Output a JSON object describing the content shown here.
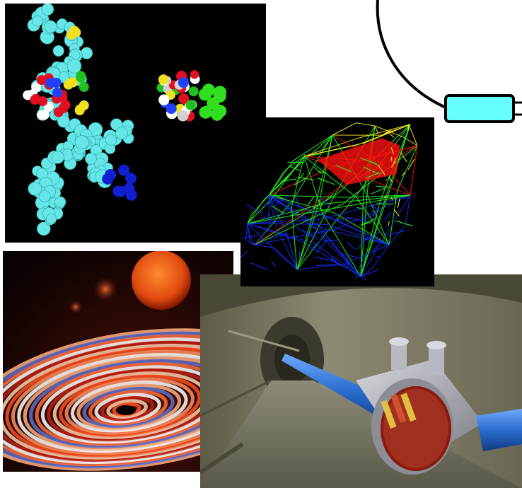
{
  "images": [
    {
      "name": "molecular-model",
      "icon": "molecule-illustration"
    },
    {
      "name": "car-wireframe",
      "icon": "car-wireframe-illustration"
    },
    {
      "name": "black-hole-accretion-disk",
      "icon": "galaxy-illustration"
    },
    {
      "name": "accelerator-tunnel",
      "icon": "tunnel-illustration"
    },
    {
      "name": "cable-connector",
      "icon": "cable-plug-illustration"
    }
  ],
  "colors": {
    "background": "#ffffff",
    "cable": "#000000",
    "connector": "#66ffff",
    "molecule_primary": "#66e6e6",
    "car_blue": "#1030ff",
    "car_red": "#ff1010",
    "car_green": "#20ff20",
    "car_yellow": "#ffee20",
    "galaxy_orange": "#ff5020",
    "beam_pipe_blue": "#2a6fd0"
  }
}
